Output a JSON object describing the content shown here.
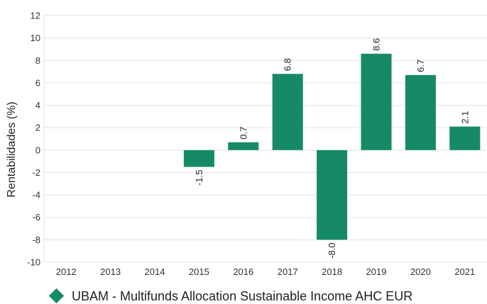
{
  "chart_data": {
    "type": "bar",
    "categories": [
      "2012",
      "2013",
      "2014",
      "2015",
      "2016",
      "2017",
      "2018",
      "2019",
      "2020",
      "2021"
    ],
    "series": [
      {
        "name": "UBAM - Multifunds Allocation Sustainable Income AHC EUR",
        "values": [
          null,
          null,
          null,
          -1.5,
          0.7,
          6.8,
          -8.0,
          8.6,
          6.7,
          2.1
        ],
        "labels": [
          "",
          "",
          "",
          "-1.5",
          "0.7",
          "6.8",
          "-8.0",
          "8.6",
          "6.7",
          "2.1"
        ]
      }
    ],
    "ylabel": "Rentabilidades (%)",
    "ylim": [
      -10,
      12
    ],
    "yticks": [
      12,
      10,
      8,
      6,
      4,
      2,
      0,
      -2,
      -4,
      -6,
      -8,
      -10
    ],
    "grid": true,
    "legend_position": "bottom",
    "bar_color": "#168a66",
    "grid_color": "#e3e3e3"
  }
}
